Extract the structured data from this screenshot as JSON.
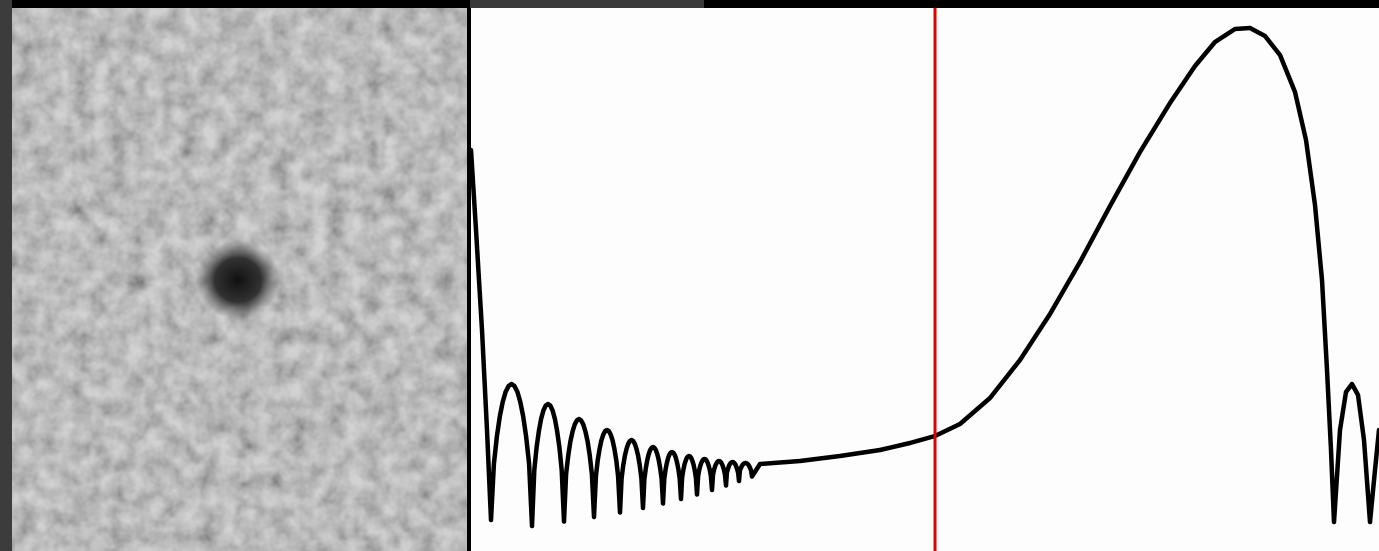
{
  "colors": {
    "page_background": "#ffffff",
    "top_bar_dark": "#000000",
    "top_bar_grey": "#3a3a3a",
    "left_border": "#3c3c3c",
    "texture_base": "#9c9c9c",
    "spot": "#1c1c1c",
    "plot_background": "#fdfdfd",
    "curve": "#000000",
    "marker": "#e00000"
  },
  "icons": {
    "left_panel": "noise-texture-with-dark-spot",
    "right_panel": "oscillating-curve-with-red-marker"
  }
}
